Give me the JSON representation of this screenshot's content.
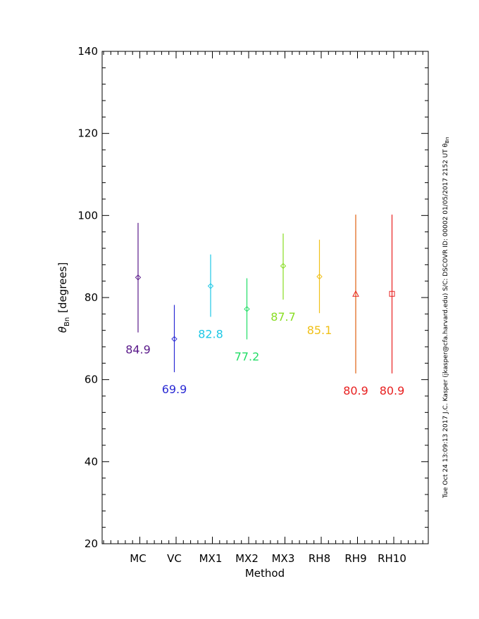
{
  "chart_data": {
    "type": "scatter",
    "xlabel": "Method",
    "ylabel_symbol": "θ",
    "ylabel_subscript": "Bn",
    "ylabel_unit": "[degrees]",
    "ylim": [
      20,
      140
    ],
    "yticks": [
      20,
      40,
      60,
      80,
      100,
      120,
      140
    ],
    "yminor_step": 4,
    "categories": [
      "MC",
      "VC",
      "MX1",
      "MX2",
      "MX3",
      "RH8",
      "RH9",
      "RH10"
    ],
    "points": [
      {
        "method": "MC",
        "value": 84.9,
        "lower": 71.5,
        "upper": 98.2,
        "label": "84.9",
        "marker": "diamond",
        "color": "#5a1a8a"
      },
      {
        "method": "VC",
        "value": 69.9,
        "lower": 61.8,
        "upper": 78.2,
        "label": "69.9",
        "marker": "diamond",
        "color": "#2b2bd4"
      },
      {
        "method": "MX1",
        "value": 82.8,
        "lower": 75.3,
        "upper": 90.5,
        "label": "82.8",
        "marker": "diamond",
        "color": "#1ec8e6"
      },
      {
        "method": "MX2",
        "value": 77.2,
        "lower": 69.8,
        "upper": 84.7,
        "label": "77.2",
        "marker": "diamond",
        "color": "#22dd66"
      },
      {
        "method": "MX3",
        "value": 87.7,
        "lower": 79.5,
        "upper": 95.6,
        "label": "87.7",
        "marker": "diamond",
        "color": "#88dd22"
      },
      {
        "method": "RH8",
        "value": 85.1,
        "lower": 76.2,
        "upper": 94.1,
        "label": "85.1",
        "marker": "diamond",
        "color": "#f0c018"
      },
      {
        "method": "RH9",
        "value": 80.9,
        "lower": 61.5,
        "upper": 100.2,
        "label": "80.9",
        "marker": "triangle",
        "color": "#e06010",
        "label_color": "#e82020"
      },
      {
        "method": "RH10",
        "value": 80.9,
        "lower": 61.5,
        "upper": 100.2,
        "label": "80.9",
        "marker": "square",
        "color": "#e82020",
        "label_color": "#e82020"
      }
    ],
    "grid": false,
    "legend": "none"
  },
  "credit_text": "Tue Oct 24 13:09:13 2017  J.C. Kasper (jkasper@cfa.harvard.edu)  S/C: DSCOVR ID: 00002 01/05/2017  2152 UT θ",
  "credit_subscript": "Bn"
}
